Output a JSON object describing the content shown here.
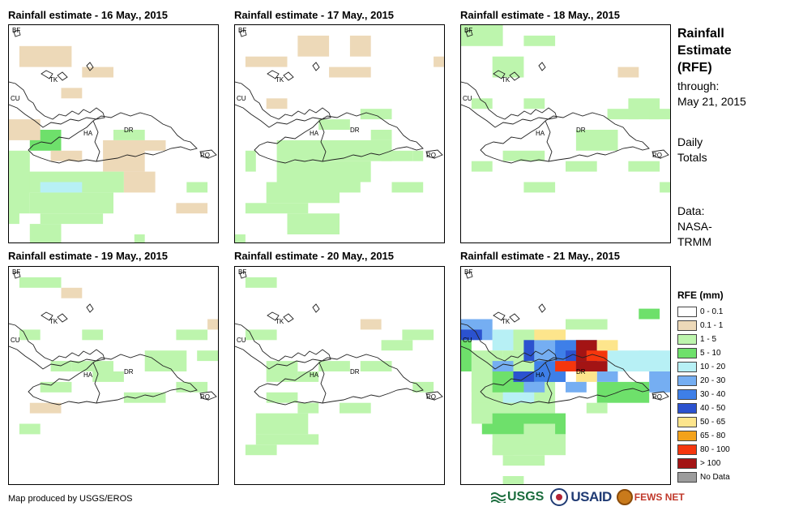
{
  "panels": [
    {
      "title": "Rainfall estimate - 16 May., 2015"
    },
    {
      "title": "Rainfall estimate - 17 May., 2015"
    },
    {
      "title": "Rainfall estimate - 18 May., 2015"
    },
    {
      "title": "Rainfall estimate - 19 May., 2015"
    },
    {
      "title": "Rainfall estimate - 20 May., 2015"
    },
    {
      "title": "Rainfall estimate - 21 May., 2015"
    }
  ],
  "map_labels": {
    "bf": "BF",
    "tk": "TK",
    "cu": "CU",
    "ha": "HA",
    "dr": "DR",
    "rq": "RQ"
  },
  "side": {
    "title_l1": "Rainfall",
    "title_l2": "Estimate",
    "title_l3": "(RFE)",
    "through": "through:",
    "date": "May 21, 2015",
    "daily1": "Daily",
    "daily2": "Totals",
    "data1": "Data:",
    "data2": "NASA-",
    "data3": "TRMM"
  },
  "legend": {
    "title": "RFE (mm)",
    "items": [
      {
        "label": "0 - 0.1",
        "color": "#ffffff"
      },
      {
        "label": "0.1 - 1",
        "color": "#edd9b8"
      },
      {
        "label": "1 - 5",
        "color": "#bdf5ad"
      },
      {
        "label": "5 - 10",
        "color": "#6ee06b"
      },
      {
        "label": "10 - 20",
        "color": "#b7f0f5"
      },
      {
        "label": "20 - 30",
        "color": "#75aef2"
      },
      {
        "label": "30 - 40",
        "color": "#3e7fe8"
      },
      {
        "label": "40 - 50",
        "color": "#2b52cf"
      },
      {
        "label": "50 - 65",
        "color": "#fde58c"
      },
      {
        "label": "65 - 80",
        "color": "#f3a21b"
      },
      {
        "label": "80 - 100",
        "color": "#f5360d"
      },
      {
        "label": "> 100",
        "color": "#a31414"
      },
      {
        "label": "No Data",
        "color": "#9c9c9c"
      }
    ]
  },
  "credit": "Map produced by USGS/EROS",
  "logos": {
    "usgs": "USGS",
    "usaid": "USAID",
    "fews": "FEWS NET"
  }
}
